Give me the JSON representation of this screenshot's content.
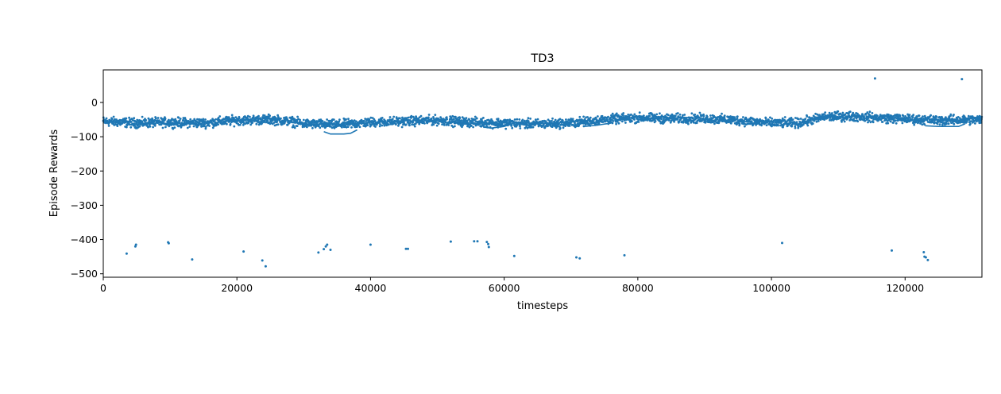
{
  "chart_data": {
    "type": "scatter",
    "title": "TD3",
    "xlabel": "timesteps",
    "ylabel": "Episode Rewards",
    "xlim": [
      0,
      131500
    ],
    "ylim": [
      -510,
      95
    ],
    "xticks": [
      0,
      20000,
      40000,
      60000,
      80000,
      100000,
      120000
    ],
    "yticks": [
      0,
      -100,
      -200,
      -300,
      -400,
      -500
    ],
    "xtick_labels": [
      "0",
      "20000",
      "40000",
      "60000",
      "80000",
      "100000",
      "120000"
    ],
    "ytick_labels": [
      "0",
      "−100",
      "−200",
      "−300",
      "−400",
      "−500"
    ],
    "grid": false,
    "series": [
      {
        "color": "#1f77b4",
        "marker": "dot",
        "band_mean": [
          [
            0,
            -55
          ],
          [
            5000,
            -60
          ],
          [
            10000,
            -58
          ],
          [
            15000,
            -60
          ],
          [
            20000,
            -52
          ],
          [
            25000,
            -50
          ],
          [
            28000,
            -55
          ],
          [
            30000,
            -62
          ],
          [
            35000,
            -65
          ],
          [
            40000,
            -58
          ],
          [
            45000,
            -55
          ],
          [
            50000,
            -52
          ],
          [
            55000,
            -58
          ],
          [
            60000,
            -60
          ],
          [
            65000,
            -63
          ],
          [
            70000,
            -60
          ],
          [
            75000,
            -50
          ],
          [
            80000,
            -45
          ],
          [
            85000,
            -47
          ],
          [
            90000,
            -47
          ],
          [
            95000,
            -52
          ],
          [
            100000,
            -60
          ],
          [
            104000,
            -60
          ],
          [
            108000,
            -42
          ],
          [
            112000,
            -40
          ],
          [
            116000,
            -45
          ],
          [
            120000,
            -48
          ],
          [
            125000,
            -52
          ],
          [
            131500,
            -50
          ]
        ],
        "band_halfwidth": 12,
        "connected_segments": [
          [
            [
              33000,
              -85
            ],
            [
              34000,
              -92
            ],
            [
              36000,
              -92
            ],
            [
              37000,
              -90
            ],
            [
              38000,
              -80
            ]
          ],
          [
            [
              57000,
              -72
            ],
            [
              58000,
              -75
            ],
            [
              60000,
              -70
            ],
            [
              61500,
              -60
            ]
          ],
          [
            [
              72000,
              -70
            ],
            [
              74000,
              -66
            ],
            [
              76000,
              -60
            ]
          ],
          [
            [
              123000,
              -68
            ],
            [
              125000,
              -70
            ],
            [
              128000,
              -70
            ],
            [
              129000,
              -62
            ]
          ]
        ],
        "outliers": [
          [
            3500,
            -441
          ],
          [
            4800,
            -420
          ],
          [
            4900,
            -415
          ],
          [
            9700,
            -408
          ],
          [
            9800,
            -411
          ],
          [
            13300,
            -458
          ],
          [
            21000,
            -435
          ],
          [
            23800,
            -461
          ],
          [
            24300,
            -478
          ],
          [
            32200,
            -438
          ],
          [
            33000,
            -428
          ],
          [
            33300,
            -420
          ],
          [
            33500,
            -415
          ],
          [
            34000,
            -430
          ],
          [
            40000,
            -415
          ],
          [
            45300,
            -427
          ],
          [
            45600,
            -427
          ],
          [
            52000,
            -406
          ],
          [
            55500,
            -405
          ],
          [
            56000,
            -405
          ],
          [
            57400,
            -407
          ],
          [
            57600,
            -413
          ],
          [
            57700,
            -422
          ],
          [
            61500,
            -448
          ],
          [
            70800,
            -452
          ],
          [
            71300,
            -455
          ],
          [
            78000,
            -446
          ],
          [
            101600,
            -410
          ],
          [
            118000,
            -432
          ],
          [
            122800,
            -437
          ],
          [
            122900,
            -450
          ],
          [
            123100,
            -452
          ],
          [
            123400,
            -460
          ],
          [
            115500,
            70
          ],
          [
            128500,
            68
          ]
        ]
      }
    ]
  }
}
